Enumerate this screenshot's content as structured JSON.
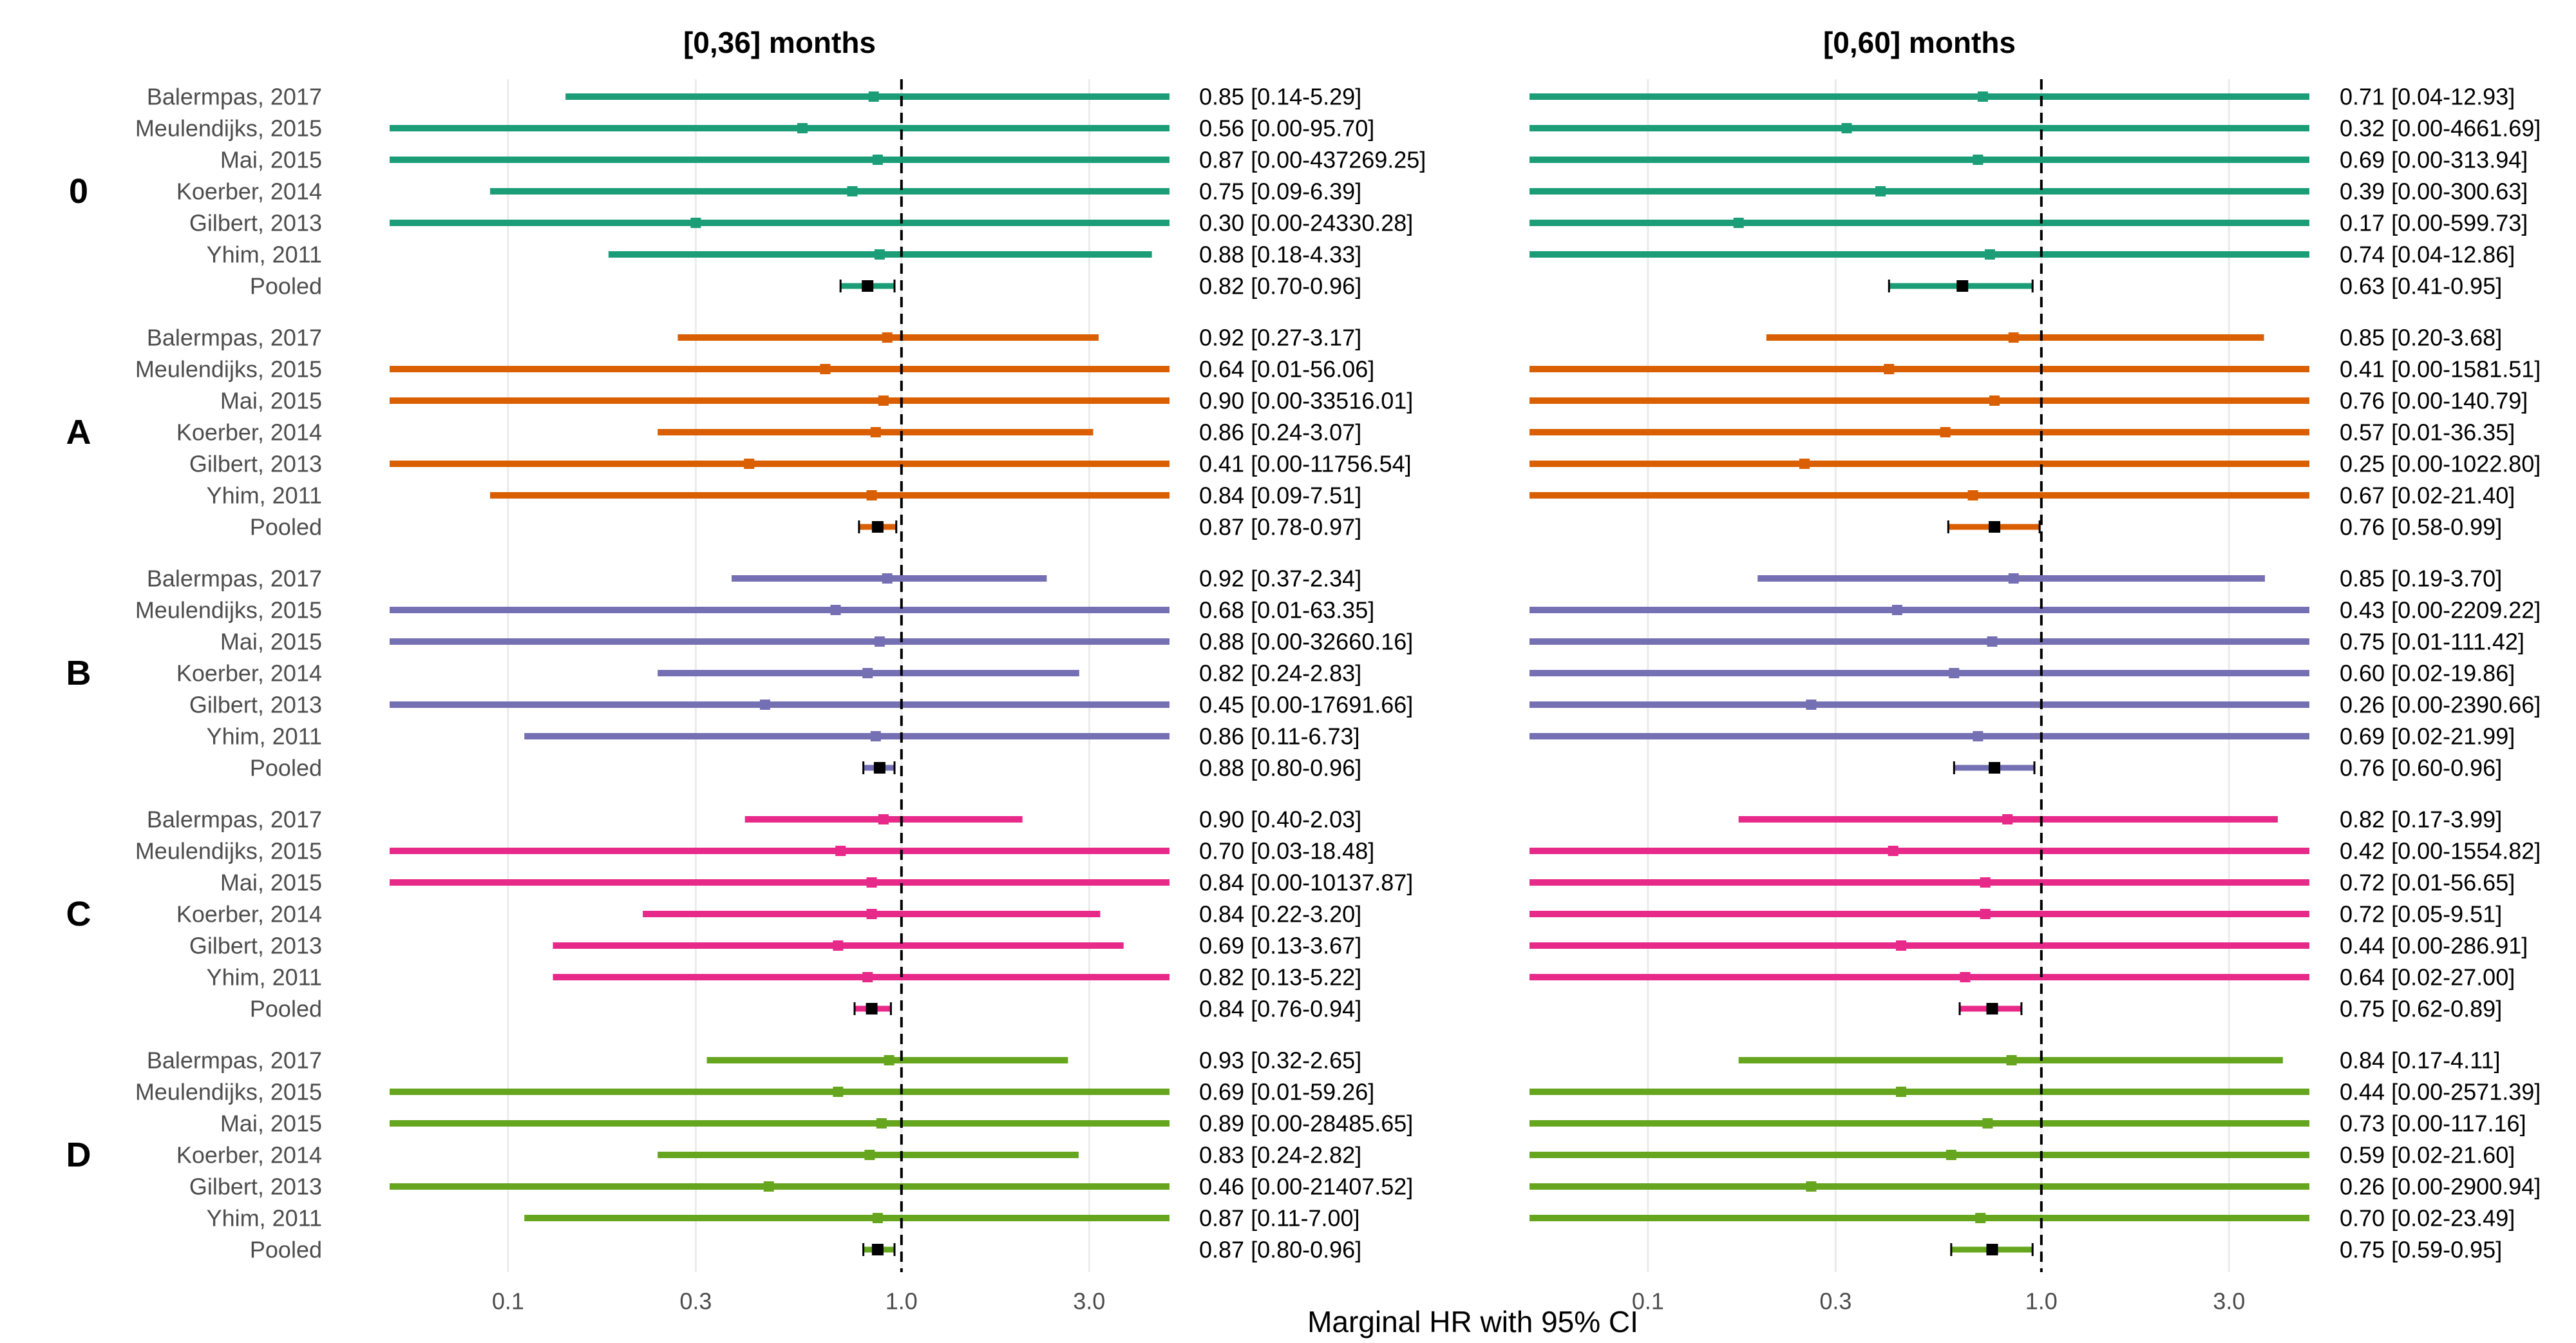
{
  "chart_data": {
    "type": "forest",
    "title": "",
    "xlabel": "Marginal HR with 95% CI",
    "x_scale": "log",
    "xlim": [
      0.05,
      4.8
    ],
    "x_ticks": [
      0.1,
      0.3,
      1.0,
      3.0
    ],
    "x_tick_labels": [
      "0.1",
      "0.3",
      "1.0",
      "3.0"
    ],
    "reference_line": 1.0,
    "studies": [
      "Balermpas, 2017",
      "Meulendijks, 2015",
      "Mai, 2015",
      "Koerber, 2014",
      "Gilbert, 2013",
      "Yhim, 2011",
      "Pooled"
    ],
    "groups": [
      {
        "label": "0",
        "color": "#1b9e77"
      },
      {
        "label": "A",
        "color": "#d95f02"
      },
      {
        "label": "B",
        "color": "#7570b3"
      },
      {
        "label": "C",
        "color": "#e7298a"
      },
      {
        "label": "D",
        "color": "#66a61e"
      }
    ],
    "panels": [
      {
        "title": "[0,36] months",
        "groups": [
          {
            "rows": [
              {
                "hr": 0.85,
                "lo": 0.14,
                "hi": 5.29,
                "label": "0.85 [0.14-5.29]"
              },
              {
                "hr": 0.56,
                "lo": 0.0,
                "hi": 95.7,
                "label": "0.56 [0.00-95.70]"
              },
              {
                "hr": 0.87,
                "lo": 0.0,
                "hi": 437269.25,
                "label": "0.87 [0.00-437269.25]"
              },
              {
                "hr": 0.75,
                "lo": 0.09,
                "hi": 6.39,
                "label": "0.75 [0.09-6.39]"
              },
              {
                "hr": 0.3,
                "lo": 0.0,
                "hi": 24330.28,
                "label": "0.30 [0.00-24330.28]"
              },
              {
                "hr": 0.88,
                "lo": 0.18,
                "hi": 4.33,
                "label": "0.88 [0.18-4.33]"
              },
              {
                "hr": 0.82,
                "lo": 0.7,
                "hi": 0.96,
                "label": "0.82 [0.70-0.96]"
              }
            ]
          },
          {
            "rows": [
              {
                "hr": 0.92,
                "lo": 0.27,
                "hi": 3.17,
                "label": "0.92 [0.27-3.17]"
              },
              {
                "hr": 0.64,
                "lo": 0.01,
                "hi": 56.06,
                "label": "0.64 [0.01-56.06]"
              },
              {
                "hr": 0.9,
                "lo": 0.0,
                "hi": 33516.01,
                "label": "0.90 [0.00-33516.01]"
              },
              {
                "hr": 0.86,
                "lo": 0.24,
                "hi": 3.07,
                "label": "0.86 [0.24-3.07]"
              },
              {
                "hr": 0.41,
                "lo": 0.0,
                "hi": 11756.54,
                "label": "0.41 [0.00-11756.54]"
              },
              {
                "hr": 0.84,
                "lo": 0.09,
                "hi": 7.51,
                "label": "0.84 [0.09-7.51]"
              },
              {
                "hr": 0.87,
                "lo": 0.78,
                "hi": 0.97,
                "label": "0.87 [0.78-0.97]"
              }
            ]
          },
          {
            "rows": [
              {
                "hr": 0.92,
                "lo": 0.37,
                "hi": 2.34,
                "label": "0.92 [0.37-2.34]"
              },
              {
                "hr": 0.68,
                "lo": 0.01,
                "hi": 63.35,
                "label": "0.68 [0.01-63.35]"
              },
              {
                "hr": 0.88,
                "lo": 0.0,
                "hi": 32660.16,
                "label": "0.88 [0.00-32660.16]"
              },
              {
                "hr": 0.82,
                "lo": 0.24,
                "hi": 2.83,
                "label": "0.82 [0.24-2.83]"
              },
              {
                "hr": 0.45,
                "lo": 0.0,
                "hi": 17691.66,
                "label": "0.45 [0.00-17691.66]"
              },
              {
                "hr": 0.86,
                "lo": 0.11,
                "hi": 6.73,
                "label": "0.86 [0.11-6.73]"
              },
              {
                "hr": 0.88,
                "lo": 0.8,
                "hi": 0.96,
                "label": "0.88 [0.80-0.96]"
              }
            ]
          },
          {
            "rows": [
              {
                "hr": 0.9,
                "lo": 0.4,
                "hi": 2.03,
                "label": "0.90 [0.40-2.03]"
              },
              {
                "hr": 0.7,
                "lo": 0.03,
                "hi": 18.48,
                "label": "0.70 [0.03-18.48]"
              },
              {
                "hr": 0.84,
                "lo": 0.0,
                "hi": 10137.87,
                "label": "0.84 [0.00-10137.87]"
              },
              {
                "hr": 0.84,
                "lo": 0.22,
                "hi": 3.2,
                "label": "0.84 [0.22-3.20]"
              },
              {
                "hr": 0.69,
                "lo": 0.13,
                "hi": 3.67,
                "label": "0.69 [0.13-3.67]"
              },
              {
                "hr": 0.82,
                "lo": 0.13,
                "hi": 5.22,
                "label": "0.82 [0.13-5.22]"
              },
              {
                "hr": 0.84,
                "lo": 0.76,
                "hi": 0.94,
                "label": "0.84 [0.76-0.94]"
              }
            ]
          },
          {
            "rows": [
              {
                "hr": 0.93,
                "lo": 0.32,
                "hi": 2.65,
                "label": "0.93 [0.32-2.65]"
              },
              {
                "hr": 0.69,
                "lo": 0.01,
                "hi": 59.26,
                "label": "0.69 [0.01-59.26]"
              },
              {
                "hr": 0.89,
                "lo": 0.0,
                "hi": 28485.65,
                "label": "0.89 [0.00-28485.65]"
              },
              {
                "hr": 0.83,
                "lo": 0.24,
                "hi": 2.82,
                "label": "0.83 [0.24-2.82]"
              },
              {
                "hr": 0.46,
                "lo": 0.0,
                "hi": 21407.52,
                "label": "0.46 [0.00-21407.52]"
              },
              {
                "hr": 0.87,
                "lo": 0.11,
                "hi": 7.0,
                "label": "0.87 [0.11-7.00]"
              },
              {
                "hr": 0.87,
                "lo": 0.8,
                "hi": 0.96,
                "label": "0.87 [0.80-0.96]"
              }
            ]
          }
        ]
      },
      {
        "title": "[0,60] months",
        "groups": [
          {
            "rows": [
              {
                "hr": 0.71,
                "lo": 0.04,
                "hi": 12.93,
                "label": "0.71 [0.04-12.93]"
              },
              {
                "hr": 0.32,
                "lo": 0.0,
                "hi": 4661.69,
                "label": "0.32 [0.00-4661.69]"
              },
              {
                "hr": 0.69,
                "lo": 0.0,
                "hi": 313.94,
                "label": "0.69 [0.00-313.94]"
              },
              {
                "hr": 0.39,
                "lo": 0.0,
                "hi": 300.63,
                "label": "0.39 [0.00-300.63]"
              },
              {
                "hr": 0.17,
                "lo": 0.0,
                "hi": 599.73,
                "label": "0.17 [0.00-599.73]"
              },
              {
                "hr": 0.74,
                "lo": 0.04,
                "hi": 12.86,
                "label": "0.74 [0.04-12.86]"
              },
              {
                "hr": 0.63,
                "lo": 0.41,
                "hi": 0.95,
                "label": "0.63 [0.41-0.95]"
              }
            ]
          },
          {
            "rows": [
              {
                "hr": 0.85,
                "lo": 0.2,
                "hi": 3.68,
                "label": "0.85 [0.20-3.68]"
              },
              {
                "hr": 0.41,
                "lo": 0.0,
                "hi": 1581.51,
                "label": "0.41 [0.00-1581.51]"
              },
              {
                "hr": 0.76,
                "lo": 0.0,
                "hi": 140.79,
                "label": "0.76 [0.00-140.79]"
              },
              {
                "hr": 0.57,
                "lo": 0.01,
                "hi": 36.35,
                "label": "0.57 [0.01-36.35]"
              },
              {
                "hr": 0.25,
                "lo": 0.0,
                "hi": 1022.8,
                "label": "0.25 [0.00-1022.80]"
              },
              {
                "hr": 0.67,
                "lo": 0.02,
                "hi": 21.4,
                "label": "0.67 [0.02-21.40]"
              },
              {
                "hr": 0.76,
                "lo": 0.58,
                "hi": 0.99,
                "label": "0.76 [0.58-0.99]"
              }
            ]
          },
          {
            "rows": [
              {
                "hr": 0.85,
                "lo": 0.19,
                "hi": 3.7,
                "label": "0.85 [0.19-3.70]"
              },
              {
                "hr": 0.43,
                "lo": 0.0,
                "hi": 2209.22,
                "label": "0.43 [0.00-2209.22]"
              },
              {
                "hr": 0.75,
                "lo": 0.01,
                "hi": 111.42,
                "label": "0.75 [0.01-111.42]"
              },
              {
                "hr": 0.6,
                "lo": 0.02,
                "hi": 19.86,
                "label": "0.60 [0.02-19.86]"
              },
              {
                "hr": 0.26,
                "lo": 0.0,
                "hi": 2390.66,
                "label": "0.26 [0.00-2390.66]"
              },
              {
                "hr": 0.69,
                "lo": 0.02,
                "hi": 21.99,
                "label": "0.69 [0.02-21.99]"
              },
              {
                "hr": 0.76,
                "lo": 0.6,
                "hi": 0.96,
                "label": "0.76 [0.60-0.96]"
              }
            ]
          },
          {
            "rows": [
              {
                "hr": 0.82,
                "lo": 0.17,
                "hi": 3.99,
                "label": "0.82 [0.17-3.99]"
              },
              {
                "hr": 0.42,
                "lo": 0.0,
                "hi": 1554.82,
                "label": "0.42 [0.00-1554.82]"
              },
              {
                "hr": 0.72,
                "lo": 0.01,
                "hi": 56.65,
                "label": "0.72 [0.01-56.65]"
              },
              {
                "hr": 0.72,
                "lo": 0.05,
                "hi": 9.51,
                "label": "0.72 [0.05-9.51]"
              },
              {
                "hr": 0.44,
                "lo": 0.0,
                "hi": 286.91,
                "label": "0.44 [0.00-286.91]"
              },
              {
                "hr": 0.64,
                "lo": 0.02,
                "hi": 27.0,
                "label": "0.64 [0.02-27.00]"
              },
              {
                "hr": 0.75,
                "lo": 0.62,
                "hi": 0.89,
                "label": "0.75 [0.62-0.89]"
              }
            ]
          },
          {
            "rows": [
              {
                "hr": 0.84,
                "lo": 0.17,
                "hi": 4.11,
                "label": "0.84 [0.17-4.11]"
              },
              {
                "hr": 0.44,
                "lo": 0.0,
                "hi": 2571.39,
                "label": "0.44 [0.00-2571.39]"
              },
              {
                "hr": 0.73,
                "lo": 0.0,
                "hi": 117.16,
                "label": "0.73 [0.00-117.16]"
              },
              {
                "hr": 0.59,
                "lo": 0.02,
                "hi": 21.6,
                "label": "0.59 [0.02-21.60]"
              },
              {
                "hr": 0.26,
                "lo": 0.0,
                "hi": 2900.94,
                "label": "0.26 [0.00-2900.94]"
              },
              {
                "hr": 0.7,
                "lo": 0.02,
                "hi": 23.49,
                "label": "0.70 [0.02-23.49]"
              },
              {
                "hr": 0.75,
                "lo": 0.59,
                "hi": 0.95,
                "label": "0.75 [0.59-0.95]"
              }
            ]
          }
        ]
      }
    ]
  }
}
